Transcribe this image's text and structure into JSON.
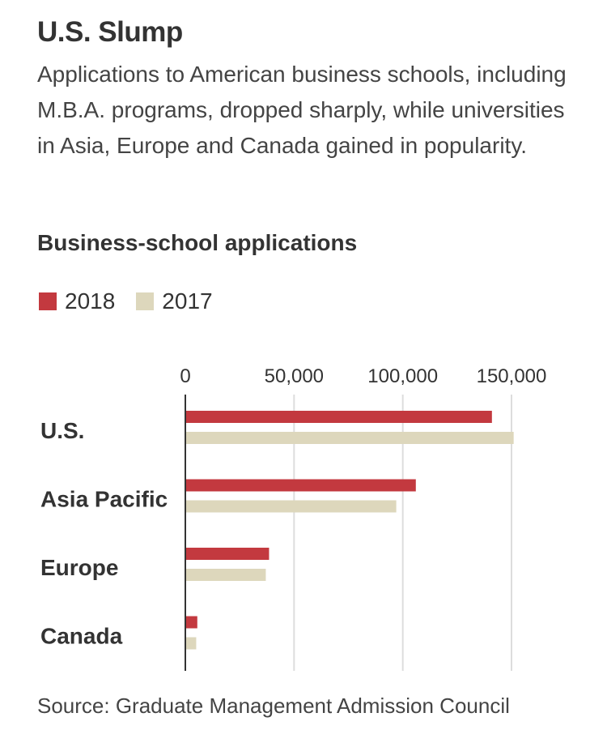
{
  "title": "U.S. Slump",
  "subtitle": "Applications to American business schools, including M.B.A. programs, dropped sharply, while universities in Asia, Europe and Canada gained in popularity.",
  "source": "Source: Graduate Management Admission Council",
  "chart_data": {
    "type": "bar",
    "orientation": "horizontal",
    "title": "Business-school applications",
    "categories": [
      "U.S.",
      "Asia Pacific",
      "Europe",
      "Canada"
    ],
    "series": [
      {
        "name": "2018",
        "values": [
          141000,
          106000,
          38500,
          5500
        ],
        "color": "#c3393f"
      },
      {
        "name": "2017",
        "values": [
          151000,
          97000,
          37000,
          5000
        ],
        "color": "#ddd7bc"
      }
    ],
    "xlim": [
      0,
      160000
    ],
    "ticks": [
      0,
      50000,
      100000,
      150000
    ],
    "tick_labels": [
      "0",
      "50,000",
      "100,000",
      "150,000"
    ],
    "grid": true,
    "legend": "top-left"
  }
}
